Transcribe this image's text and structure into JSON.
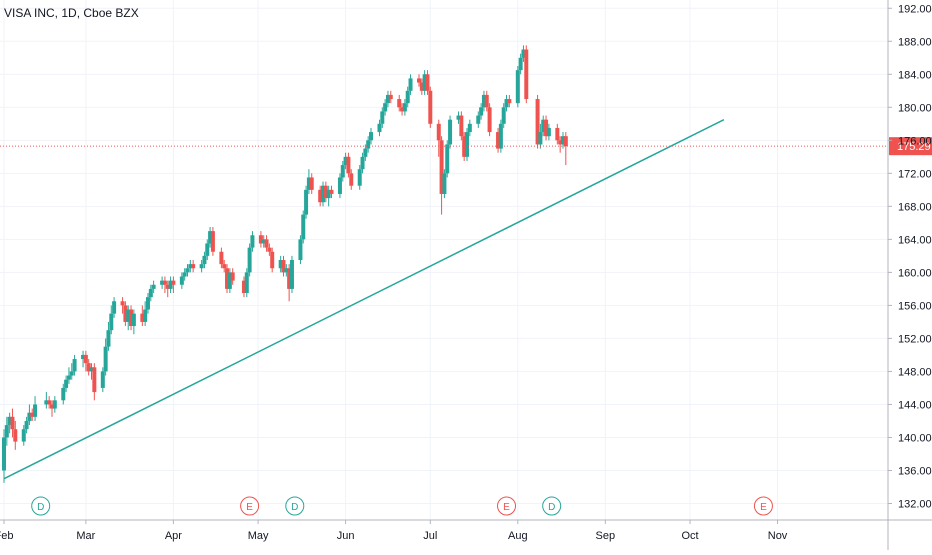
{
  "chart_data": {
    "type": "candlestick",
    "title": "VISA INC, 1D, Cboe BZX",
    "x_tick_labels": [
      "Feb",
      "Mar",
      "Apr",
      "May",
      "Jun",
      "Jul",
      "Aug",
      "Sep",
      "Oct",
      "Nov"
    ],
    "y_tick_labels": [
      "132.00",
      "136.00",
      "140.00",
      "144.00",
      "148.00",
      "152.00",
      "156.00",
      "160.00",
      "164.00",
      "168.00",
      "172.00",
      "176.00",
      "180.00",
      "184.00",
      "188.00",
      "192.00"
    ],
    "y_range": [
      130,
      193
    ],
    "x_range_days": [
      1,
      312
    ],
    "current_price": 175.29,
    "current_price_label": "175.29",
    "colors": {
      "up": "#26a69a",
      "down": "#ef5350",
      "price_line": "#ef5350",
      "trendline": "#26a69a",
      "dividend": "#26a69a",
      "earnings": "#ef5350"
    },
    "trendline": {
      "start": {
        "date": "2020-02-01",
        "price": 135
      },
      "end": {
        "date": "2020-10-13",
        "price": 178.5
      }
    },
    "events": [
      {
        "type": "dividend",
        "letter": "D",
        "date": "2020-02-14"
      },
      {
        "type": "earnings",
        "letter": "E",
        "date": "2020-04-28"
      },
      {
        "type": "dividend",
        "letter": "D",
        "date": "2020-05-14"
      },
      {
        "type": "earnings",
        "letter": "E",
        "date": "2020-07-28"
      },
      {
        "type": "dividend",
        "letter": "D",
        "date": "2020-08-13"
      },
      {
        "type": "earnings",
        "letter": "E",
        "date": "2020-10-27"
      }
    ],
    "candles": [
      [
        1,
        136.0,
        140.0,
        141.0,
        134.5
      ],
      [
        2,
        140.0,
        141.5,
        142.5,
        139.0
      ],
      [
        3,
        141.5,
        142.5,
        143.0,
        140.5
      ],
      [
        4,
        142.5,
        141.0,
        143.5,
        140.0
      ],
      [
        5,
        141.0,
        139.5,
        142.0,
        138.5
      ],
      [
        8,
        139.5,
        141.0,
        141.5,
        139.0
      ],
      [
        9,
        141.0,
        142.0,
        142.5,
        140.5
      ],
      [
        10,
        142.0,
        143.0,
        144.0,
        141.5
      ],
      [
        11,
        143.0,
        142.5,
        143.5,
        142.0
      ],
      [
        12,
        142.5,
        144.0,
        145.0,
        142.0
      ],
      [
        16,
        144.0,
        144.5,
        145.5,
        143.5
      ],
      [
        17,
        144.5,
        144.0,
        145.0,
        143.5
      ],
      [
        18,
        144.0,
        143.5,
        144.5,
        142.5
      ],
      [
        19,
        143.5,
        144.5,
        145.0,
        143.0
      ],
      [
        22,
        144.5,
        146.0,
        146.5,
        144.0
      ],
      [
        23,
        146.0,
        147.0,
        147.5,
        145.5
      ],
      [
        24,
        147.0,
        147.5,
        148.5,
        146.5
      ],
      [
        25,
        147.5,
        148.0,
        149.0,
        147.0
      ],
      [
        26,
        148.0,
        149.5,
        150.0,
        147.5
      ],
      [
        29,
        149.5,
        150.0,
        150.5,
        148.5
      ],
      [
        30,
        150.0,
        149.0,
        150.5,
        148.0
      ],
      [
        31,
        149.0,
        148.0,
        149.5,
        147.5
      ],
      [
        32,
        148.0,
        148.5,
        149.0,
        147.0
      ],
      [
        33,
        148.5,
        145.5,
        149.0,
        144.5
      ],
      [
        36,
        146.0,
        148.0,
        148.5,
        145.5
      ],
      [
        37,
        148.0,
        151.0,
        152.0,
        147.5
      ],
      [
        38,
        151.0,
        153.0,
        154.0,
        150.5
      ],
      [
        39,
        153.0,
        155.0,
        156.0,
        152.5
      ],
      [
        40,
        155.0,
        156.5,
        157.0,
        154.5
      ],
      [
        43,
        156.5,
        156.0,
        157.0,
        155.0
      ],
      [
        44,
        156.0,
        154.0,
        156.5,
        153.5
      ],
      [
        45,
        154.0,
        155.5,
        156.0,
        153.0
      ],
      [
        46,
        155.5,
        153.5,
        156.0,
        153.0
      ],
      [
        47,
        153.5,
        155.0,
        155.5,
        152.5
      ],
      [
        50,
        155.0,
        154.0,
        156.0,
        153.5
      ],
      [
        51,
        154.0,
        155.5,
        156.5,
        153.5
      ],
      [
        52,
        155.5,
        157.0,
        157.5,
        155.0
      ],
      [
        53,
        157.0,
        158.0,
        158.5,
        156.5
      ],
      [
        54,
        158.0,
        158.5,
        159.0,
        157.5
      ],
      [
        57,
        158.5,
        159.0,
        159.5,
        158.0
      ],
      [
        58,
        159.0,
        158.5,
        159.5,
        157.5
      ],
      [
        59,
        158.5,
        158.0,
        159.0,
        157.0
      ],
      [
        60,
        158.0,
        159.0,
        159.5,
        157.5
      ],
      [
        61,
        159.0,
        158.5,
        159.5,
        157.5
      ],
      [
        64,
        158.5,
        159.5,
        160.0,
        158.0
      ],
      [
        65,
        159.5,
        160.0,
        160.5,
        159.0
      ],
      [
        66,
        160.0,
        160.5,
        161.0,
        159.5
      ],
      [
        67,
        160.5,
        161.0,
        161.5,
        160.0
      ],
      [
        68,
        161.0,
        160.5,
        161.5,
        160.0
      ],
      [
        71,
        160.5,
        161.0,
        161.5,
        160.0
      ],
      [
        72,
        161.0,
        162.0,
        162.5,
        160.5
      ],
      [
        73,
        162.0,
        163.5,
        164.0,
        161.5
      ],
      [
        74,
        163.5,
        165.0,
        165.5,
        163.0
      ],
      [
        75,
        165.0,
        162.5,
        165.5,
        162.0
      ],
      [
        78,
        162.5,
        161.0,
        163.0,
        160.5
      ],
      [
        79,
        161.0,
        160.5,
        161.5,
        160.0
      ],
      [
        80,
        160.5,
        158.0,
        161.0,
        157.5
      ],
      [
        81,
        158.0,
        160.0,
        160.5,
        157.5
      ],
      [
        82,
        160.0,
        159.0,
        160.5,
        158.5
      ],
      [
        86,
        159.0,
        157.5,
        159.5,
        157.0
      ],
      [
        87,
        157.5,
        160.0,
        160.5,
        157.0
      ],
      [
        88,
        160.0,
        163.0,
        163.5,
        159.5
      ],
      [
        89,
        163.0,
        164.5,
        165.0,
        162.5
      ],
      [
        92,
        164.5,
        163.5,
        165.0,
        163.0
      ],
      [
        93,
        163.5,
        164.0,
        164.5,
        163.0
      ],
      [
        94,
        164.0,
        163.0,
        164.5,
        162.5
      ],
      [
        95,
        163.0,
        162.5,
        163.5,
        162.0
      ],
      [
        96,
        162.5,
        160.5,
        163.0,
        160.0
      ],
      [
        99,
        160.5,
        161.5,
        162.0,
        160.0
      ],
      [
        100,
        161.5,
        160.0,
        162.0,
        159.5
      ],
      [
        101,
        160.0,
        160.5,
        161.0,
        159.5
      ],
      [
        102,
        160.5,
        158.0,
        161.0,
        156.5
      ],
      [
        103,
        158.0,
        161.5,
        162.0,
        157.5
      ],
      [
        106,
        161.5,
        164.0,
        164.5,
        161.0
      ],
      [
        107,
        164.0,
        167.0,
        167.5,
        163.5
      ],
      [
        108,
        167.0,
        170.0,
        170.5,
        166.5
      ],
      [
        109,
        170.0,
        171.5,
        172.5,
        169.5
      ],
      [
        110,
        171.5,
        170.0,
        172.0,
        169.5
      ],
      [
        113,
        170.0,
        168.5,
        170.5,
        168.0
      ],
      [
        114,
        168.5,
        170.5,
        171.0,
        168.0
      ],
      [
        115,
        170.5,
        169.0,
        171.0,
        168.5
      ],
      [
        116,
        169.0,
        170.0,
        170.5,
        168.0
      ],
      [
        117,
        170.0,
        169.5,
        170.5,
        169.0
      ],
      [
        120,
        169.5,
        171.5,
        172.0,
        169.0
      ],
      [
        121,
        171.5,
        173.0,
        173.5,
        171.0
      ],
      [
        122,
        173.0,
        174.0,
        174.5,
        172.5
      ],
      [
        123,
        174.0,
        172.0,
        174.5,
        171.5
      ],
      [
        124,
        172.0,
        170.5,
        172.5,
        170.0
      ],
      [
        127,
        170.5,
        172.5,
        173.0,
        170.0
      ],
      [
        128,
        172.5,
        174.0,
        174.5,
        172.0
      ],
      [
        129,
        174.0,
        175.0,
        175.5,
        173.5
      ],
      [
        130,
        175.0,
        176.0,
        176.5,
        174.5
      ],
      [
        131,
        176.0,
        177.0,
        177.5,
        175.5
      ],
      [
        134,
        177.0,
        178.0,
        178.5,
        176.5
      ],
      [
        135,
        178.0,
        179.5,
        180.0,
        177.5
      ],
      [
        136,
        179.5,
        180.5,
        181.0,
        179.0
      ],
      [
        137,
        180.5,
        181.5,
        182.0,
        180.0
      ],
      [
        138,
        181.5,
        181.0,
        182.0,
        180.5
      ],
      [
        141,
        181.0,
        180.0,
        181.5,
        179.5
      ],
      [
        142,
        180.0,
        179.5,
        180.5,
        179.0
      ],
      [
        143,
        179.5,
        180.5,
        181.0,
        179.0
      ],
      [
        144,
        180.5,
        182.0,
        182.5,
        180.0
      ],
      [
        145,
        182.0,
        183.5,
        184.0,
        181.5
      ],
      [
        148,
        183.5,
        183.0,
        184.0,
        182.5
      ],
      [
        149,
        183.0,
        182.0,
        183.5,
        181.5
      ],
      [
        150,
        182.0,
        184.0,
        184.5,
        181.5
      ],
      [
        151,
        184.0,
        182.0,
        184.5,
        181.5
      ],
      [
        152,
        182.0,
        178.0,
        182.5,
        177.5
      ],
      [
        155,
        178.0,
        176.0,
        178.5,
        174.0
      ],
      [
        156,
        176.0,
        169.5,
        176.5,
        167.0
      ],
      [
        157,
        169.5,
        172.0,
        172.5,
        169.0
      ],
      [
        158,
        172.0,
        175.5,
        176.0,
        171.5
      ],
      [
        159,
        175.5,
        178.5,
        179.0,
        175.0
      ],
      [
        162,
        178.5,
        179.0,
        179.5,
        178.0
      ],
      [
        163,
        179.0,
        176.5,
        179.5,
        176.0
      ],
      [
        164,
        176.5,
        174.0,
        177.0,
        173.5
      ],
      [
        165,
        174.0,
        177.0,
        177.5,
        173.5
      ],
      [
        166,
        177.0,
        178.0,
        178.5,
        176.5
      ],
      [
        169,
        178.0,
        179.0,
        179.5,
        177.5
      ],
      [
        170,
        179.0,
        180.0,
        180.5,
        178.5
      ],
      [
        171,
        180.0,
        181.5,
        182.0,
        179.5
      ],
      [
        172,
        181.5,
        180.0,
        182.0,
        179.5
      ],
      [
        173,
        180.0,
        177.0,
        180.5,
        176.5
      ],
      [
        176,
        177.0,
        175.0,
        177.5,
        174.5
      ],
      [
        177,
        175.0,
        178.0,
        178.5,
        174.5
      ],
      [
        178,
        178.0,
        180.0,
        180.5,
        177.5
      ],
      [
        179,
        180.0,
        181.0,
        181.5,
        179.5
      ],
      [
        180,
        181.0,
        180.5,
        181.5,
        180.0
      ],
      [
        183,
        180.5,
        184.5,
        185.0,
        180.0
      ],
      [
        184,
        184.5,
        186.0,
        186.5,
        184.0
      ],
      [
        185,
        186.0,
        187.0,
        187.5,
        185.5
      ],
      [
        186,
        187.0,
        181.0,
        187.5,
        180.5
      ],
      [
        190,
        181.0,
        175.5,
        181.5,
        175.0
      ],
      [
        191,
        175.5,
        177.0,
        178.0,
        175.0
      ],
      [
        192,
        177.0,
        178.5,
        179.0,
        176.5
      ],
      [
        193,
        178.5,
        176.5,
        179.0,
        176.0
      ],
      [
        194,
        176.5,
        177.5,
        178.0,
        176.0
      ],
      [
        197,
        177.5,
        176.0,
        178.0,
        175.5
      ],
      [
        198,
        176.0,
        175.5,
        176.5,
        174.5
      ],
      [
        199,
        175.5,
        176.5,
        177.0,
        175.0
      ],
      [
        200,
        176.5,
        175.29,
        177.0,
        173.0
      ]
    ]
  }
}
